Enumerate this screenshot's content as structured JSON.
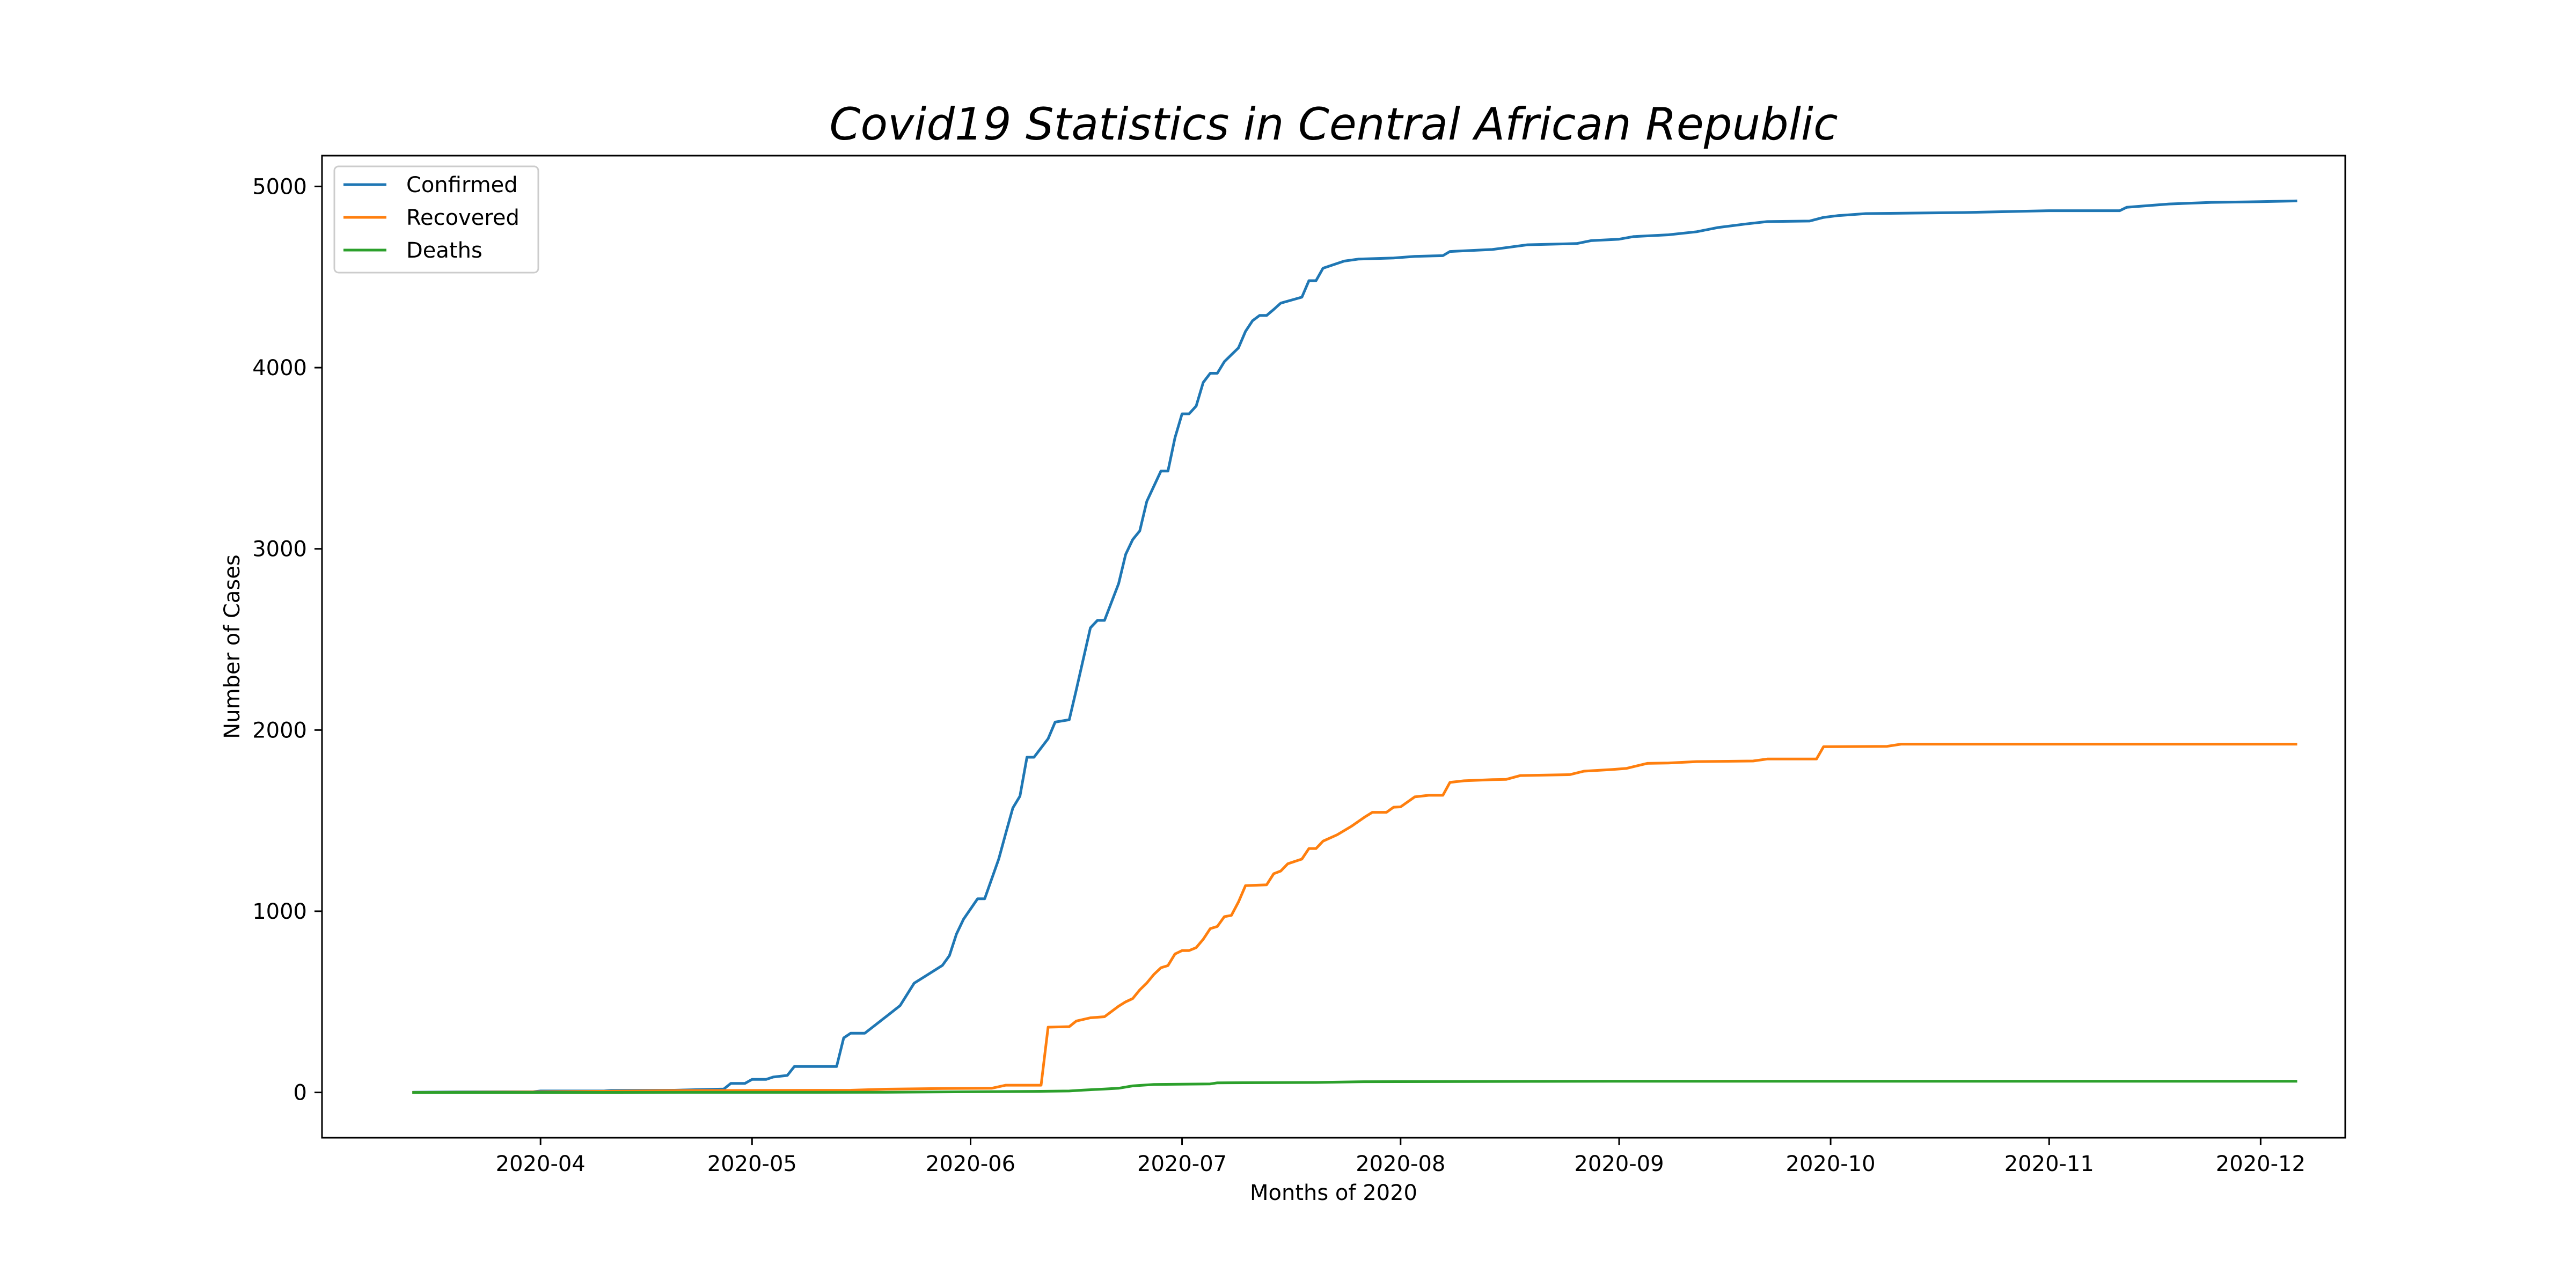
{
  "chart_data": {
    "type": "line",
    "title": "Covid19 Statistics in Central African Republic",
    "xlabel": "Months of 2020",
    "ylabel": "Number of Cases",
    "x_range": [
      "2020-03-01",
      "2020-12-13"
    ],
    "ylim": [
      -250,
      5170
    ],
    "x_ticks": [
      {
        "date": "2020-04-01",
        "label": "2020-04"
      },
      {
        "date": "2020-05-01",
        "label": "2020-05"
      },
      {
        "date": "2020-06-01",
        "label": "2020-06"
      },
      {
        "date": "2020-07-01",
        "label": "2020-07"
      },
      {
        "date": "2020-08-01",
        "label": "2020-08"
      },
      {
        "date": "2020-09-01",
        "label": "2020-09"
      },
      {
        "date": "2020-10-01",
        "label": "2020-10"
      },
      {
        "date": "2020-11-01",
        "label": "2020-11"
      },
      {
        "date": "2020-12-01",
        "label": "2020-12"
      }
    ],
    "y_ticks": [
      0,
      1000,
      2000,
      3000,
      4000,
      5000
    ],
    "grid": false,
    "legend_position": "top-left",
    "series": [
      {
        "name": "Confirmed",
        "color": "#1f77b4",
        "points": [
          [
            "2020-03-14",
            1
          ],
          [
            "2020-03-20",
            3
          ],
          [
            "2020-03-31",
            4
          ],
          [
            "2020-04-01",
            8
          ],
          [
            "2020-04-10",
            8
          ],
          [
            "2020-04-11",
            11
          ],
          [
            "2020-04-20",
            12
          ],
          [
            "2020-04-27",
            19
          ],
          [
            "2020-04-28",
            50
          ],
          [
            "2020-04-30",
            50
          ],
          [
            "2020-05-01",
            72
          ],
          [
            "2020-05-03",
            72
          ],
          [
            "2020-05-04",
            85
          ],
          [
            "2020-05-06",
            94
          ],
          [
            "2020-05-07",
            143
          ],
          [
            "2020-05-13",
            143
          ],
          [
            "2020-05-14",
            301
          ],
          [
            "2020-05-15",
            327
          ],
          [
            "2020-05-17",
            327
          ],
          [
            "2020-05-20",
            418
          ],
          [
            "2020-05-22",
            479
          ],
          [
            "2020-05-24",
            603
          ],
          [
            "2020-05-26",
            652
          ],
          [
            "2020-05-28",
            701
          ],
          [
            "2020-05-29",
            755
          ],
          [
            "2020-05-30",
            874
          ],
          [
            "2020-05-31",
            956
          ],
          [
            "2020-06-02",
            1069
          ],
          [
            "2020-06-03",
            1069
          ],
          [
            "2020-06-05",
            1288
          ],
          [
            "2020-06-06",
            1431
          ],
          [
            "2020-06-07",
            1570
          ],
          [
            "2020-06-08",
            1635
          ],
          [
            "2020-06-09",
            1850
          ],
          [
            "2020-06-10",
            1850
          ],
          [
            "2020-06-12",
            1952
          ],
          [
            "2020-06-13",
            2044
          ],
          [
            "2020-06-15",
            2057
          ],
          [
            "2020-06-16",
            2222
          ],
          [
            "2020-06-18",
            2564
          ],
          [
            "2020-06-19",
            2605
          ],
          [
            "2020-06-20",
            2605
          ],
          [
            "2020-06-22",
            2808
          ],
          [
            "2020-06-23",
            2969
          ],
          [
            "2020-06-24",
            3051
          ],
          [
            "2020-06-25",
            3099
          ],
          [
            "2020-06-26",
            3262
          ],
          [
            "2020-06-28",
            3429
          ],
          [
            "2020-06-29",
            3429
          ],
          [
            "2020-06-30",
            3613
          ],
          [
            "2020-07-01",
            3745
          ],
          [
            "2020-07-02",
            3745
          ],
          [
            "2020-07-03",
            3788
          ],
          [
            "2020-07-04",
            3918
          ],
          [
            "2020-07-05",
            3969
          ],
          [
            "2020-07-06",
            3969
          ],
          [
            "2020-07-07",
            4033
          ],
          [
            "2020-07-09",
            4109
          ],
          [
            "2020-07-10",
            4200
          ],
          [
            "2020-07-11",
            4259
          ],
          [
            "2020-07-12",
            4288
          ],
          [
            "2020-07-13",
            4288
          ],
          [
            "2020-07-14",
            4321
          ],
          [
            "2020-07-15",
            4356
          ],
          [
            "2020-07-18",
            4389
          ],
          [
            "2020-07-19",
            4480
          ],
          [
            "2020-07-20",
            4480
          ],
          [
            "2020-07-21",
            4549
          ],
          [
            "2020-07-24",
            4588
          ],
          [
            "2020-07-26",
            4599
          ],
          [
            "2020-07-31",
            4605
          ],
          [
            "2020-08-03",
            4614
          ],
          [
            "2020-08-07",
            4618
          ],
          [
            "2020-08-08",
            4641
          ],
          [
            "2020-08-14",
            4652
          ],
          [
            "2020-08-19",
            4678
          ],
          [
            "2020-08-26",
            4685
          ],
          [
            "2020-08-28",
            4701
          ],
          [
            "2020-09-01",
            4709
          ],
          [
            "2020-09-03",
            4723
          ],
          [
            "2020-09-08",
            4733
          ],
          [
            "2020-09-12",
            4750
          ],
          [
            "2020-09-15",
            4773
          ],
          [
            "2020-09-19",
            4793
          ],
          [
            "2020-09-22",
            4806
          ],
          [
            "2020-09-28",
            4809
          ],
          [
            "2020-09-30",
            4829
          ],
          [
            "2020-10-02",
            4839
          ],
          [
            "2020-10-06",
            4850
          ],
          [
            "2020-10-20",
            4856
          ],
          [
            "2020-11-01",
            4866
          ],
          [
            "2020-11-11",
            4866
          ],
          [
            "2020-11-12",
            4885
          ],
          [
            "2020-11-18",
            4903
          ],
          [
            "2020-11-24",
            4912
          ],
          [
            "2020-12-01",
            4916
          ],
          [
            "2020-12-06",
            4920
          ]
        ]
      },
      {
        "name": "Recovered",
        "color": "#ff7f0e",
        "points": [
          [
            "2020-03-14",
            0
          ],
          [
            "2020-04-01",
            3
          ],
          [
            "2020-04-20",
            10
          ],
          [
            "2020-05-15",
            12
          ],
          [
            "2020-05-20",
            18
          ],
          [
            "2020-05-28",
            22
          ],
          [
            "2020-06-04",
            23
          ],
          [
            "2020-06-06",
            40
          ],
          [
            "2020-06-11",
            40
          ],
          [
            "2020-06-12",
            360
          ],
          [
            "2020-06-15",
            363
          ],
          [
            "2020-06-16",
            394
          ],
          [
            "2020-06-18",
            412
          ],
          [
            "2020-06-20",
            418
          ],
          [
            "2020-06-22",
            476
          ],
          [
            "2020-06-23",
            500
          ],
          [
            "2020-06-24",
            518
          ],
          [
            "2020-06-25",
            566
          ],
          [
            "2020-06-26",
            604
          ],
          [
            "2020-06-27",
            651
          ],
          [
            "2020-06-28",
            688
          ],
          [
            "2020-06-29",
            700
          ],
          [
            "2020-06-30",
            764
          ],
          [
            "2020-07-01",
            783
          ],
          [
            "2020-07-02",
            783
          ],
          [
            "2020-07-03",
            799
          ],
          [
            "2020-07-04",
            845
          ],
          [
            "2020-07-05",
            904
          ],
          [
            "2020-07-06",
            916
          ],
          [
            "2020-07-07",
            970
          ],
          [
            "2020-07-08",
            977
          ],
          [
            "2020-07-09",
            1051
          ],
          [
            "2020-07-10",
            1141
          ],
          [
            "2020-07-13",
            1146
          ],
          [
            "2020-07-14",
            1207
          ],
          [
            "2020-07-15",
            1222
          ],
          [
            "2020-07-16",
            1262
          ],
          [
            "2020-07-18",
            1288
          ],
          [
            "2020-07-19",
            1346
          ],
          [
            "2020-07-20",
            1346
          ],
          [
            "2020-07-21",
            1387
          ],
          [
            "2020-07-23",
            1422
          ],
          [
            "2020-07-25",
            1468
          ],
          [
            "2020-07-27",
            1522
          ],
          [
            "2020-07-28",
            1546
          ],
          [
            "2020-07-30",
            1546
          ],
          [
            "2020-07-31",
            1574
          ],
          [
            "2020-08-01",
            1576
          ],
          [
            "2020-08-03",
            1631
          ],
          [
            "2020-08-05",
            1640
          ],
          [
            "2020-08-07",
            1640
          ],
          [
            "2020-08-08",
            1711
          ],
          [
            "2020-08-10",
            1720
          ],
          [
            "2020-08-14",
            1726
          ],
          [
            "2020-08-16",
            1728
          ],
          [
            "2020-08-18",
            1749
          ],
          [
            "2020-08-25",
            1754
          ],
          [
            "2020-08-27",
            1773
          ],
          [
            "2020-08-31",
            1782
          ],
          [
            "2020-09-02",
            1788
          ],
          [
            "2020-09-05",
            1816
          ],
          [
            "2020-09-08",
            1818
          ],
          [
            "2020-09-12",
            1826
          ],
          [
            "2020-09-20",
            1829
          ],
          [
            "2020-09-22",
            1840
          ],
          [
            "2020-09-29",
            1840
          ],
          [
            "2020-09-30",
            1908
          ],
          [
            "2020-10-09",
            1910
          ],
          [
            "2020-10-11",
            1922
          ],
          [
            "2020-12-06",
            1922
          ]
        ]
      },
      {
        "name": "Deaths",
        "color": "#2ca02c",
        "points": [
          [
            "2020-03-14",
            0
          ],
          [
            "2020-05-20",
            1
          ],
          [
            "2020-06-10",
            6
          ],
          [
            "2020-06-15",
            8
          ],
          [
            "2020-06-17",
            13
          ],
          [
            "2020-06-20",
            19
          ],
          [
            "2020-06-22",
            23
          ],
          [
            "2020-06-24",
            36
          ],
          [
            "2020-06-27",
            44
          ],
          [
            "2020-07-05",
            47
          ],
          [
            "2020-07-06",
            53
          ],
          [
            "2020-07-20",
            55
          ],
          [
            "2020-07-26",
            59
          ],
          [
            "2020-08-31",
            62
          ],
          [
            "2020-12-06",
            62
          ]
        ]
      }
    ]
  }
}
